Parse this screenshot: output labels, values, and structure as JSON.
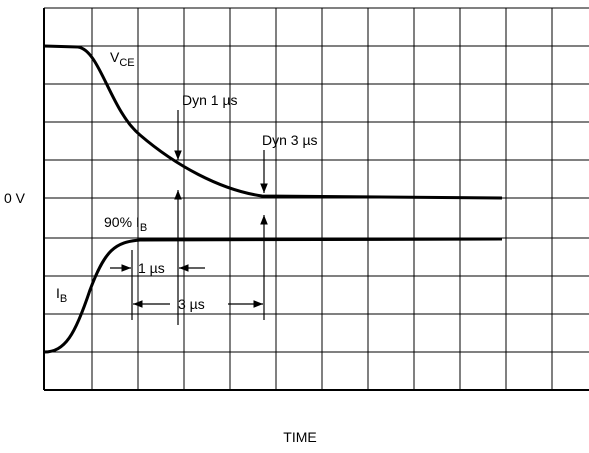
{
  "labels": {
    "vce": {
      "main": "V",
      "sub": "CE"
    },
    "dyn1": "Dyn 1 µs",
    "dyn3": "Dyn 3 µs",
    "zero": "0 V",
    "ib90": {
      "main": "90% I",
      "sub": "B"
    },
    "ib": {
      "main": "I",
      "sub": "B"
    },
    "one": "1 µs",
    "three": "3 µs",
    "time": "TIME"
  }
}
